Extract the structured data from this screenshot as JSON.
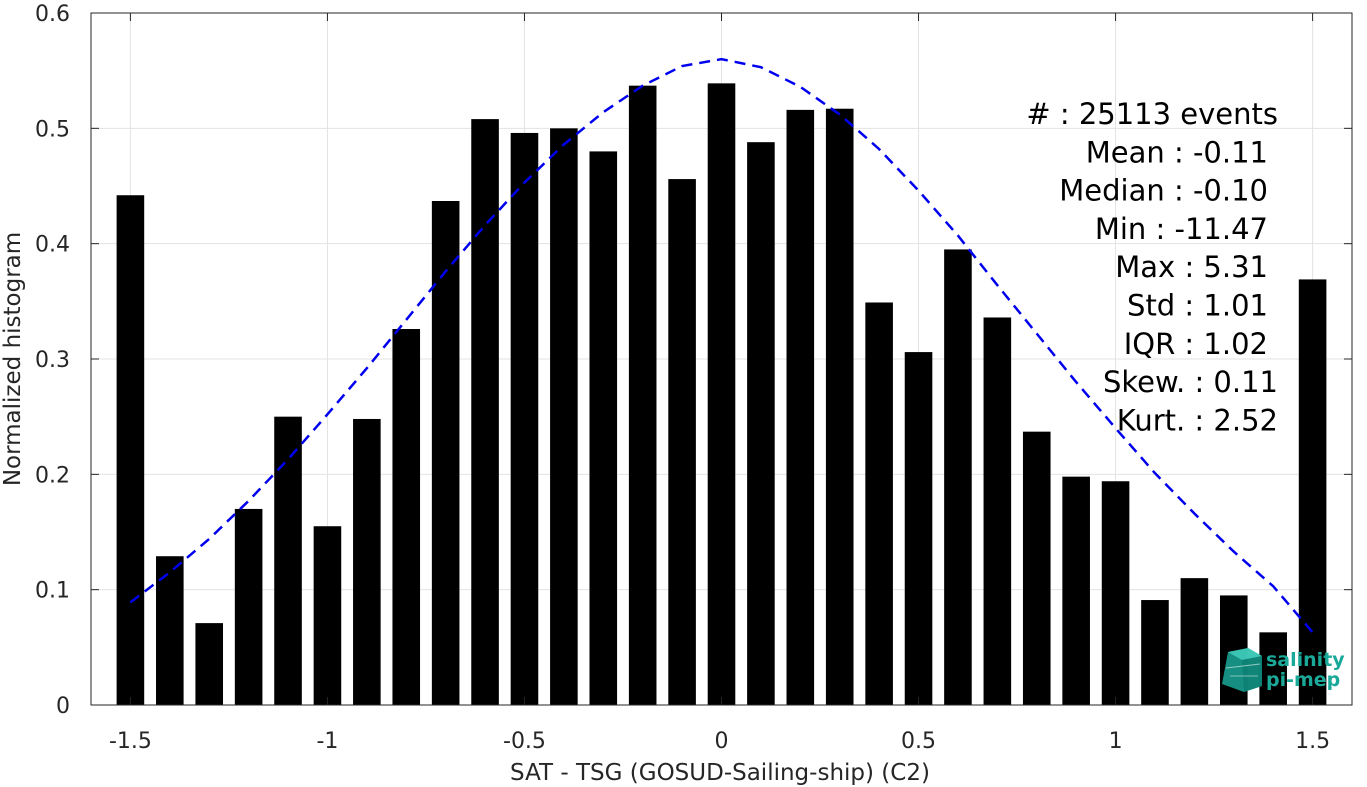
{
  "chart_data": {
    "type": "bar",
    "xlabel": "SAT - TSG (GOSUD-Sailing-ship) (C2)",
    "ylabel": "Normalized histogram",
    "xlim": [
      -1.6,
      1.6
    ],
    "ylim": [
      0,
      0.6
    ],
    "x_ticks": [
      "-1.5",
      "-1",
      "-0.5",
      "0",
      "0.5",
      "1",
      "1.5"
    ],
    "x_tick_values": [
      -1.5,
      -1,
      -0.5,
      0,
      0.5,
      1,
      1.5
    ],
    "y_ticks": [
      "0",
      "0.1",
      "0.2",
      "0.3",
      "0.4",
      "0.5",
      "0.6"
    ],
    "y_tick_values": [
      0,
      0.1,
      0.2,
      0.3,
      0.4,
      0.5,
      0.6
    ],
    "grid": true,
    "bar_width": 0.07,
    "bar_color": "#000000",
    "bars": {
      "x": [
        -1.5,
        -1.4,
        -1.3,
        -1.2,
        -1.1,
        -1.0,
        -0.9,
        -0.8,
        -0.7,
        -0.6,
        -0.5,
        -0.4,
        -0.3,
        -0.2,
        -0.1,
        0.0,
        0.1,
        0.2,
        0.3,
        0.4,
        0.5,
        0.6,
        0.7,
        0.8,
        0.9,
        1.0,
        1.1,
        1.2,
        1.3,
        1.4,
        1.5
      ],
      "values": [
        0.442,
        0.129,
        0.071,
        0.17,
        0.25,
        0.155,
        0.248,
        0.326,
        0.437,
        0.508,
        0.496,
        0.5,
        0.48,
        0.537,
        0.456,
        0.539,
        0.488,
        0.516,
        0.517,
        0.349,
        0.306,
        0.395,
        0.336,
        0.237,
        0.198,
        0.194,
        0.091,
        0.11,
        0.095,
        0.063,
        0.369
      ]
    },
    "fit_curve": {
      "style": "dashed",
      "color": "#0000ee",
      "x": [
        -1.5,
        -1.4,
        -1.3,
        -1.2,
        -1.1,
        -1.0,
        -0.9,
        -0.8,
        -0.7,
        -0.6,
        -0.5,
        -0.4,
        -0.3,
        -0.2,
        -0.1,
        0.0,
        0.1,
        0.2,
        0.3,
        0.4,
        0.5,
        0.6,
        0.7,
        0.8,
        0.9,
        1.0,
        1.1,
        1.2,
        1.3,
        1.4,
        1.5
      ],
      "y": [
        0.089,
        0.115,
        0.144,
        0.177,
        0.213,
        0.252,
        0.292,
        0.334,
        0.376,
        0.416,
        0.453,
        0.486,
        0.514,
        0.537,
        0.554,
        0.56,
        0.553,
        0.536,
        0.512,
        0.482,
        0.446,
        0.407,
        0.364,
        0.322,
        0.28,
        0.24,
        0.201,
        0.166,
        0.133,
        0.103,
        0.063
      ]
    },
    "annotations": [
      "#  : 25113 events",
      "Mean : -0.11",
      "Median : -0.10",
      "Min : -11.47",
      "Max : 5.31",
      "Std : 1.01",
      "IQR : 1.02",
      "Skew. : 0.11",
      "Kurt. : 2.52"
    ]
  },
  "logo": {
    "line1": "salinity",
    "line2": "pi-mep",
    "color": "#1aa899"
  }
}
